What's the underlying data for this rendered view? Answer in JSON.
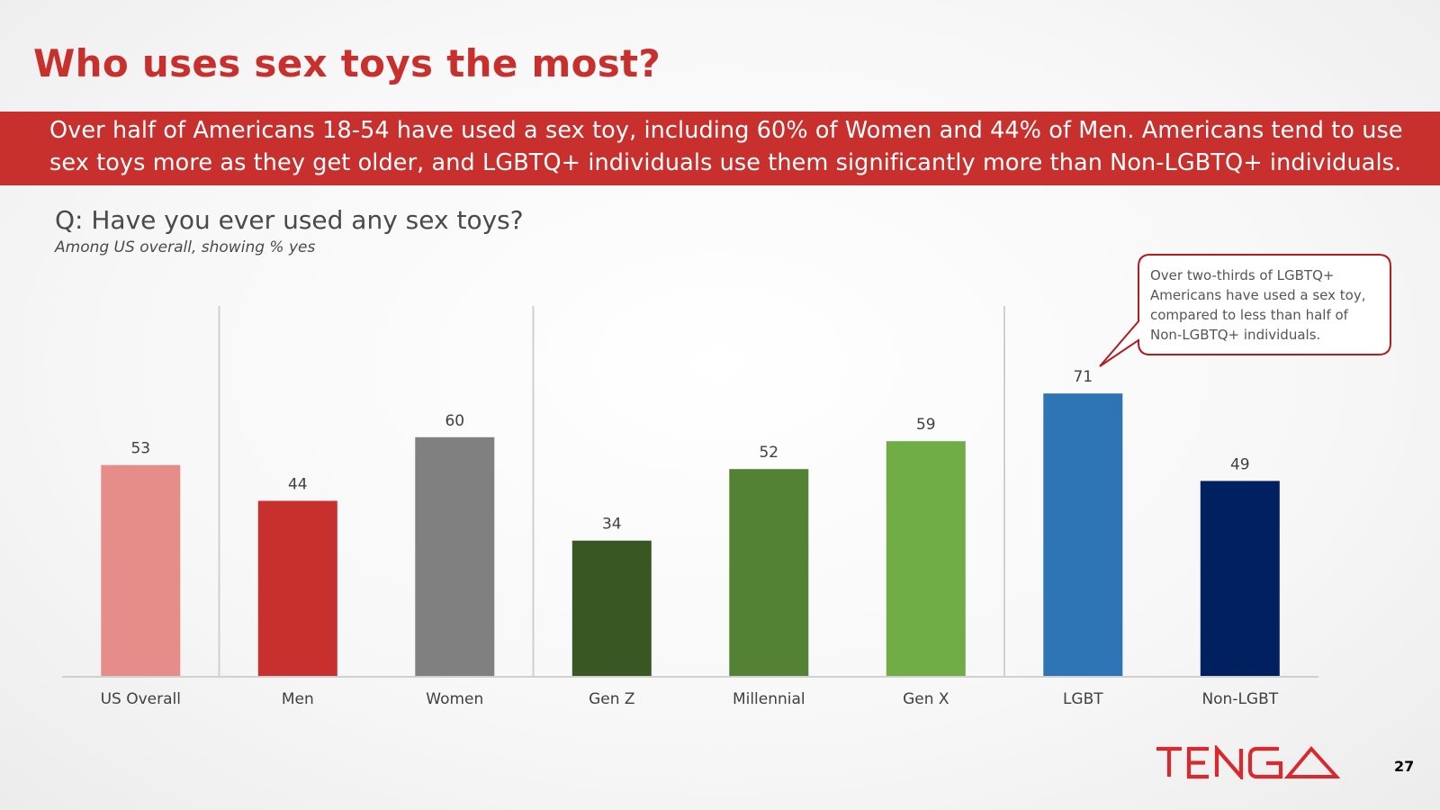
{
  "slide": {
    "title": "Who uses sex toys the most?",
    "banner_lines": [
      "Over half of Americans 18-54 have used a sex toy, including 60% of Women and 44% of Men. Americans tend to use",
      "sex toys more as they get older, and LGBTQ+ individuals use them significantly more than Non-LGBTQ+ individuals."
    ],
    "question": "Q: Have you ever used any sex toys?",
    "subtitle": "Among US overall, showing % yes",
    "callout": "Over two-thirds of LGBTQ+ Americans have used a sex toy, compared to less than half of Non-LGBTQ+ individuals.",
    "logo_text": "TENGA",
    "page_number": "27"
  },
  "colors": {
    "accent": "#c8302e",
    "callout_border": "#b01e23"
  },
  "chart_data": {
    "type": "bar",
    "categories": [
      "US Overall",
      "Men",
      "Women",
      "Gen Z",
      "Millennial",
      "Gen X",
      "LGBT",
      "Non-LGBT"
    ],
    "values": [
      53,
      44,
      60,
      34,
      52,
      59,
      71,
      49
    ],
    "data_labels": [
      "53",
      "44",
      "60",
      "34",
      "52",
      "59",
      "71",
      "49"
    ],
    "colors": [
      "#e68d89",
      "#c8302e",
      "#808080",
      "#385723",
      "#548235",
      "#70ad47",
      "#2e75b6",
      "#002060"
    ],
    "ylim": [
      0,
      100
    ],
    "group_dividers_after": [
      "US Overall",
      "Women",
      "Gen X"
    ],
    "grid": false,
    "legend": "none"
  }
}
